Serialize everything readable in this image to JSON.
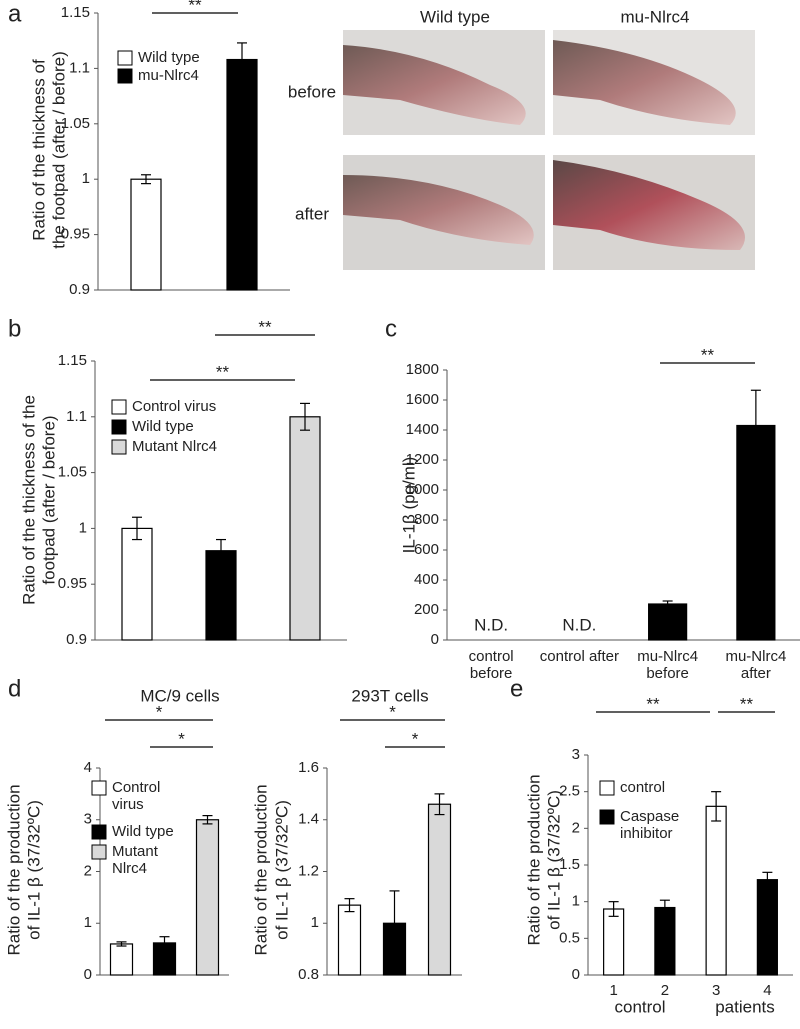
{
  "chart_data": [
    {
      "type": "bar",
      "letter": "a",
      "ylabel": [
        "Ratio of the thickness of",
        "the footpad (after / before)"
      ],
      "categories": [
        null,
        null
      ],
      "ylim": [
        0.9,
        1.15
      ],
      "yticks": [
        0.9,
        0.95,
        1,
        1.05,
        1.1,
        1.15
      ],
      "series": [
        {
          "name": "Wild type",
          "color": "#ffffff",
          "values": [
            1.0,
            null
          ],
          "errors": [
            0.004,
            null
          ]
        },
        {
          "name": "mu-Nlrc4",
          "color": "#000000",
          "values": [
            null,
            1.108
          ],
          "errors": [
            null,
            0.015
          ]
        }
      ],
      "significance": [
        {
          "label": "**"
        }
      ]
    },
    {
      "type": "bar",
      "letter": "b",
      "ylabel": [
        "Ratio of the thickness of the",
        "footpad (after / before)"
      ],
      "categories": [
        null,
        null,
        null
      ],
      "ylim": [
        0.9,
        1.15
      ],
      "yticks": [
        0.9,
        0.95,
        1,
        1.05,
        1.1,
        1.15
      ],
      "series": [
        {
          "name": "Control virus",
          "color": "#ffffff",
          "values": [
            1.0,
            null,
            null
          ],
          "errors": [
            0.01,
            null,
            null
          ]
        },
        {
          "name": "Wild type",
          "color": "#000000",
          "values": [
            null,
            0.98,
            null
          ],
          "errors": [
            null,
            0.01,
            null
          ]
        },
        {
          "name": "Mutant Nlrc4",
          "color": "#d9d9d9",
          "values": [
            null,
            null,
            1.1
          ],
          "errors": [
            null,
            null,
            0.012
          ]
        }
      ],
      "significance": [
        {
          "label": "**"
        },
        {
          "label": "**"
        }
      ]
    },
    {
      "type": "bar",
      "letter": "c",
      "ylabel": [
        "IL-1β (pg/ml)"
      ],
      "categories": [
        "control before",
        "control after",
        "mu-Nlrc4 before",
        "mu-Nlrc4 after"
      ],
      "ylim": [
        0,
        1800
      ],
      "yticks": [
        0,
        200,
        400,
        600,
        800,
        1000,
        1200,
        1400,
        1600,
        1800
      ],
      "series": [
        {
          "color": "#000000",
          "values": [
            null,
            null,
            240,
            1430
          ],
          "errors": [
            null,
            null,
            20,
            235
          ],
          "value_labels": [
            "N.D.",
            "N.D.",
            null,
            null
          ]
        }
      ],
      "significance": [
        {
          "label": "**"
        }
      ]
    },
    {
      "type": "bar",
      "letter": "d",
      "title": "MC/9 cells",
      "ylabel": [
        "Ratio of the production",
        "of IL-1 β (37/32ºC)"
      ],
      "categories": [
        null,
        null,
        null
      ],
      "ylim": [
        0,
        4
      ],
      "yticks": [
        0,
        1,
        2,
        3,
        4
      ],
      "series": [
        {
          "name": "Control virus",
          "color": "#ffffff",
          "values": [
            0.6,
            null,
            null
          ],
          "errors": [
            0.04,
            null,
            null
          ]
        },
        {
          "name": "Wild type",
          "color": "#000000",
          "values": [
            null,
            0.62,
            null
          ],
          "errors": [
            null,
            0.12,
            null
          ]
        },
        {
          "name": "Mutant Nlrc4",
          "color": "#d9d9d9",
          "values": [
            null,
            null,
            3.0
          ],
          "errors": [
            null,
            null,
            0.08
          ]
        }
      ],
      "significance": [
        {
          "label": "*"
        },
        {
          "label": "*"
        }
      ]
    },
    {
      "type": "bar",
      "title": "293T cells",
      "ylabel": [
        "Ratio of the production",
        "of IL-1 β (37/32ºC)"
      ],
      "categories": [
        null,
        null,
        null
      ],
      "ylim": [
        0.8,
        1.6
      ],
      "yticks": [
        0.8,
        1,
        1.2,
        1.4,
        1.6
      ],
      "series": [
        {
          "color": "#ffffff",
          "values": [
            1.07,
            null,
            null
          ],
          "errors": [
            0.025,
            null,
            null
          ]
        },
        {
          "color": "#000000",
          "values": [
            null,
            1.0,
            null
          ],
          "errors": [
            null,
            0.125,
            null
          ]
        },
        {
          "color": "#d9d9d9",
          "values": [
            null,
            null,
            1.46
          ],
          "errors": [
            null,
            null,
            0.04
          ]
        }
      ],
      "significance": [
        {
          "label": "*"
        },
        {
          "label": "*"
        }
      ]
    },
    {
      "type": "bar",
      "letter": "e",
      "ylabel": [
        "Ratio of the production",
        "of IL-1 β (37/32ºC)"
      ],
      "categories": [
        "1",
        "2",
        "3",
        "4"
      ],
      "groups": [
        "control",
        "patients"
      ],
      "ylim": [
        0,
        3
      ],
      "yticks": [
        0,
        0.5,
        1,
        1.5,
        2,
        2.5,
        3
      ],
      "series": [
        {
          "name": "control",
          "color": "#ffffff",
          "values": [
            0.9,
            null,
            2.3,
            null
          ],
          "errors": [
            0.1,
            null,
            0.2,
            null
          ]
        },
        {
          "name": "Caspase inhibitor",
          "color": "#000000",
          "values": [
            null,
            0.92,
            null,
            1.3
          ],
          "errors": [
            null,
            0.1,
            null,
            0.1
          ]
        }
      ],
      "significance": [
        {
          "label": "**"
        },
        {
          "label": "**"
        }
      ]
    }
  ],
  "photo_panel": {
    "columns": [
      "Wild type",
      "mu-Nlrc4"
    ],
    "rows": [
      "before",
      "after"
    ]
  }
}
